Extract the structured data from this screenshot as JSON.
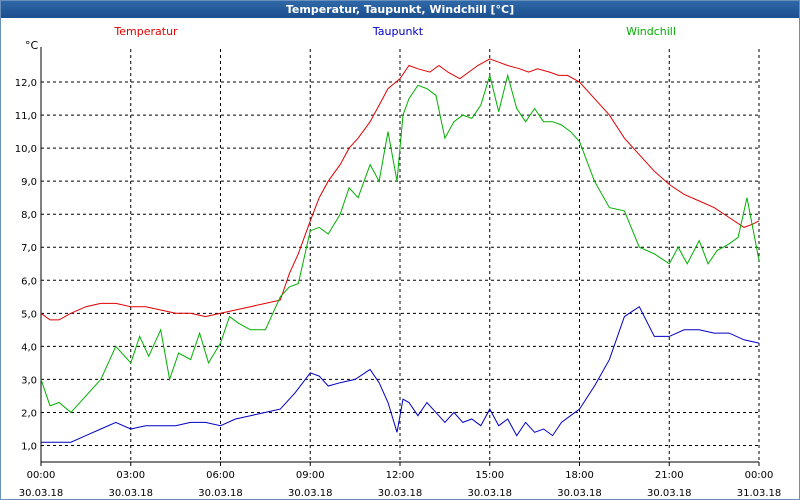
{
  "window": {
    "title": "Temperatur, Taupunkt, Windchill [°C]"
  },
  "chart_data": {
    "type": "line",
    "title": "Temperatur, Taupunkt, Windchill [°C]",
    "ylabel": "°C",
    "ylim": [
      0.5,
      13.0
    ],
    "yticks": [
      1.0,
      2.0,
      3.0,
      4.0,
      5.0,
      6.0,
      7.0,
      8.0,
      9.0,
      10.0,
      11.0,
      12.0
    ],
    "yticklabels": [
      "1,0",
      "2,0",
      "3,0",
      "4,0",
      "5,0",
      "6,0",
      "7,0",
      "8,0",
      "9,0",
      "10,0",
      "11,0",
      "12,0"
    ],
    "xlim": [
      0,
      24
    ],
    "xticks": [
      0,
      3,
      6,
      9,
      12,
      15,
      18,
      21,
      24
    ],
    "xticklabels_time": [
      "00:00",
      "03:00",
      "06:00",
      "09:00",
      "12:00",
      "15:00",
      "18:00",
      "21:00",
      "00:00"
    ],
    "xticklabels_date": [
      "30.03.18",
      "30.03.18",
      "30.03.18",
      "30.03.18",
      "30.03.18",
      "30.03.18",
      "30.03.18",
      "30.03.18",
      "31.03.18"
    ],
    "grid": true,
    "series": [
      {
        "name": "Temperatur",
        "color": "#e00000",
        "x": [
          0,
          0.3,
          0.6,
          1,
          1.5,
          2,
          2.5,
          3,
          3.5,
          4,
          4.5,
          5,
          5.5,
          6,
          6.5,
          7,
          7.5,
          8,
          8.3,
          8.6,
          9,
          9.3,
          9.6,
          10,
          10.3,
          10.6,
          11,
          11.3,
          11.6,
          12,
          12.3,
          12.6,
          13,
          13.3,
          13.6,
          14,
          14.3,
          14.6,
          15,
          15.3,
          15.6,
          16,
          16.3,
          16.6,
          17,
          17.3,
          17.6,
          18,
          18.5,
          19,
          19.5,
          20,
          20.5,
          21,
          21.5,
          22,
          22.5,
          23,
          23.5,
          23.8,
          24
        ],
        "y": [
          5.0,
          4.8,
          4.8,
          5.0,
          5.2,
          5.3,
          5.3,
          5.2,
          5.2,
          5.1,
          5.0,
          5.0,
          4.9,
          5.0,
          5.1,
          5.2,
          5.3,
          5.4,
          6.2,
          6.8,
          7.8,
          8.5,
          9.0,
          9.5,
          10.0,
          10.3,
          10.8,
          11.3,
          11.8,
          12.1,
          12.5,
          12.4,
          12.3,
          12.5,
          12.3,
          12.1,
          12.3,
          12.5,
          12.7,
          12.6,
          12.5,
          12.4,
          12.3,
          12.4,
          12.3,
          12.2,
          12.2,
          12.0,
          11.5,
          11.0,
          10.3,
          9.8,
          9.3,
          8.9,
          8.6,
          8.4,
          8.2,
          7.9,
          7.6,
          7.7,
          7.8
        ]
      },
      {
        "name": "Taupunkt",
        "color": "#0000c0",
        "x": [
          0,
          0.5,
          1,
          1.5,
          2,
          2.5,
          3,
          3.5,
          4,
          4.5,
          5,
          5.5,
          6,
          6.5,
          7,
          7.5,
          8,
          8.5,
          9,
          9.3,
          9.6,
          10,
          10.5,
          11,
          11.3,
          11.6,
          11.9,
          12.1,
          12.3,
          12.6,
          12.9,
          13.2,
          13.5,
          13.8,
          14.1,
          14.4,
          14.7,
          15,
          15.3,
          15.6,
          15.9,
          16.2,
          16.5,
          16.8,
          17.1,
          17.4,
          17.7,
          18,
          18.5,
          19,
          19.5,
          20,
          20.5,
          21,
          21.5,
          22,
          22.5,
          23,
          23.5,
          24
        ],
        "y": [
          1.1,
          1.1,
          1.1,
          1.3,
          1.5,
          1.7,
          1.5,
          1.6,
          1.6,
          1.6,
          1.7,
          1.7,
          1.6,
          1.8,
          1.9,
          2.0,
          2.1,
          2.6,
          3.2,
          3.1,
          2.8,
          2.9,
          3.0,
          3.3,
          2.9,
          2.3,
          1.4,
          2.4,
          2.3,
          1.9,
          2.3,
          2.0,
          1.7,
          2.0,
          1.7,
          1.8,
          1.6,
          2.1,
          1.6,
          1.8,
          1.3,
          1.7,
          1.4,
          1.5,
          1.3,
          1.7,
          1.9,
          2.1,
          2.8,
          3.6,
          4.9,
          5.2,
          4.3,
          4.3,
          4.5,
          4.5,
          4.4,
          4.4,
          4.2,
          4.1
        ]
      },
      {
        "name": "Windchill",
        "color": "#00b000",
        "x": [
          0,
          0.3,
          0.6,
          1,
          1.5,
          2,
          2.5,
          3,
          3.3,
          3.6,
          4,
          4.3,
          4.6,
          5,
          5.3,
          5.6,
          6,
          6.3,
          6.6,
          7,
          7.5,
          8,
          8.3,
          8.6,
          9,
          9.3,
          9.6,
          10,
          10.3,
          10.6,
          11,
          11.3,
          11.6,
          11.9,
          12.1,
          12.3,
          12.6,
          12.9,
          13.2,
          13.5,
          13.8,
          14.1,
          14.4,
          14.7,
          15,
          15.3,
          15.6,
          15.9,
          16.2,
          16.5,
          16.8,
          17.1,
          17.4,
          17.7,
          18,
          18.5,
          19,
          19.5,
          20,
          20.5,
          21,
          21.3,
          21.6,
          22,
          22.3,
          22.6,
          23,
          23.3,
          23.6,
          24
        ],
        "y": [
          3.0,
          2.2,
          2.3,
          2.0,
          2.5,
          3.0,
          4.0,
          3.5,
          4.3,
          3.7,
          4.5,
          3.0,
          3.8,
          3.6,
          4.4,
          3.5,
          4.1,
          4.9,
          4.7,
          4.5,
          4.5,
          5.5,
          5.8,
          5.9,
          7.5,
          7.6,
          7.4,
          8.0,
          8.8,
          8.5,
          9.5,
          9.0,
          10.5,
          9.0,
          11.0,
          11.5,
          11.9,
          11.8,
          11.6,
          10.3,
          10.8,
          11.0,
          10.9,
          11.3,
          12.2,
          11.1,
          12.2,
          11.2,
          10.8,
          11.2,
          10.8,
          10.8,
          10.7,
          10.5,
          10.2,
          9.0,
          8.2,
          8.1,
          7.0,
          6.8,
          6.5,
          7.0,
          6.5,
          7.2,
          6.5,
          6.9,
          7.1,
          7.3,
          8.5,
          6.6
        ]
      }
    ]
  }
}
